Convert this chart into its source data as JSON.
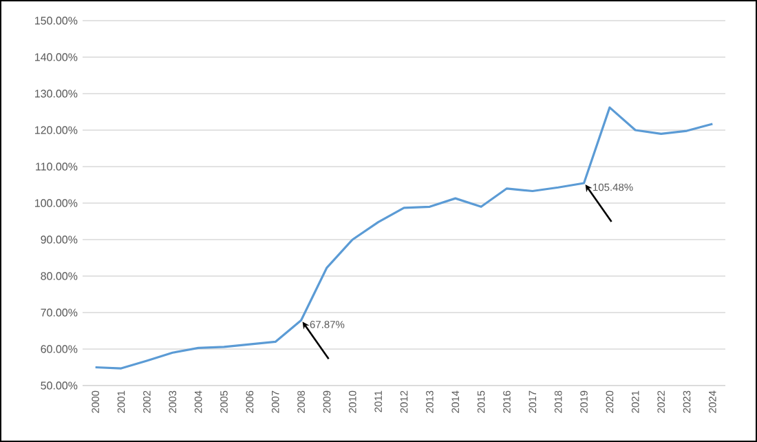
{
  "chart_data": {
    "type": "line",
    "categories": [
      "2000",
      "2001",
      "2002",
      "2003",
      "2004",
      "2005",
      "2006",
      "2007",
      "2008",
      "2009",
      "2010",
      "2011",
      "2012",
      "2013",
      "2014",
      "2015",
      "2016",
      "2017",
      "2018",
      "2019",
      "2020",
      "2021",
      "2022",
      "2023",
      "2024"
    ],
    "series": [
      {
        "color": "#5b9bd5",
        "values": [
          55.0,
          54.7,
          56.8,
          59.0,
          60.3,
          60.6,
          61.3,
          62.0,
          67.87,
          82.3,
          90.0,
          94.8,
          98.7,
          99.0,
          101.3,
          99.0,
          104.0,
          103.3,
          104.3,
          105.48,
          126.2,
          120.0,
          119.0,
          119.8,
          121.7
        ]
      }
    ],
    "ylim": [
      50,
      150
    ],
    "yticks": [
      {
        "value": 50,
        "label": "50.00%"
      },
      {
        "value": 60,
        "label": "60.00%"
      },
      {
        "value": 70,
        "label": "70.00%"
      },
      {
        "value": 80,
        "label": "80.00%"
      },
      {
        "value": 90,
        "label": "90.00%"
      },
      {
        "value": 100,
        "label": "100.00%"
      },
      {
        "value": 110,
        "label": "110.00%"
      },
      {
        "value": 120,
        "label": "120.00%"
      },
      {
        "value": 130,
        "label": "130.00%"
      },
      {
        "value": 140,
        "label": "140.00%"
      },
      {
        "value": 150,
        "label": "150.00%"
      }
    ],
    "grid": "y",
    "annotations": [
      {
        "text": "67.87%",
        "x": "2008",
        "y": 67.87
      },
      {
        "text": "105.48%",
        "x": "2019",
        "y": 105.48
      }
    ]
  }
}
